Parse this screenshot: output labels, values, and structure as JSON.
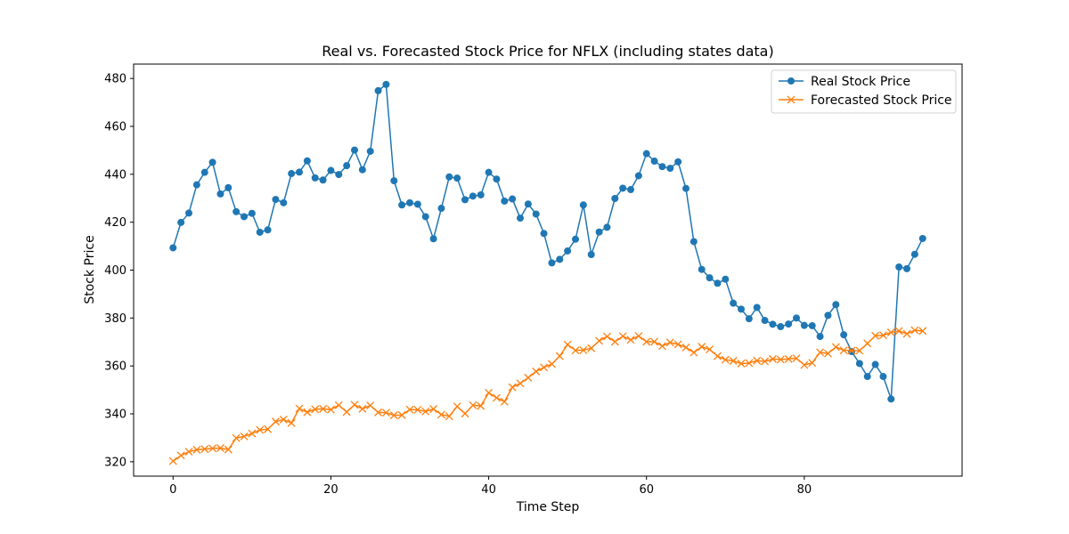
{
  "chart_data": {
    "type": "line",
    "title": "Real vs. Forecasted Stock Price for NFLX (including states data)",
    "xlabel": "Time Step",
    "ylabel": "Stock Price",
    "xlim": [
      -5,
      100
    ],
    "ylim": [
      314,
      486
    ],
    "xticks": [
      0,
      20,
      40,
      60,
      80
    ],
    "yticks": [
      320,
      340,
      360,
      380,
      400,
      420,
      440,
      460,
      480
    ],
    "grid": false,
    "legend_position": "top-right",
    "series": [
      {
        "name": "Real Stock Price",
        "color": "#1f77b4",
        "marker": "circle",
        "values": [
          409.3,
          419.9,
          423.8,
          435.6,
          440.8,
          445.0,
          431.8,
          434.4,
          424.4,
          422.3,
          423.7,
          415.8,
          416.8,
          429.5,
          428.1,
          440.3,
          440.9,
          445.6,
          438.5,
          437.6,
          441.6,
          439.9,
          443.6,
          450.1,
          441.9,
          449.6,
          474.9,
          477.5,
          437.3,
          427.2,
          428.1,
          427.5,
          422.3,
          413.1,
          425.8,
          438.9,
          438.4,
          429.4,
          430.9,
          431.4,
          440.8,
          438.0,
          428.8,
          429.7,
          421.7,
          427.6,
          423.4,
          415.3,
          403.0,
          404.5,
          408.0,
          412.9,
          427.2,
          406.5,
          415.9,
          417.9,
          429.9,
          434.2,
          433.6,
          439.4,
          448.6,
          445.5,
          443.2,
          442.5,
          445.2,
          434.1,
          411.9,
          400.3,
          396.8,
          394.5,
          396.2,
          386.2,
          383.7,
          379.7,
          384.4,
          379.0,
          377.4,
          376.4,
          377.5,
          380.0,
          376.9,
          376.8,
          372.3,
          381.1,
          385.6,
          373.0,
          366.0,
          361.0,
          355.6,
          360.6,
          355.6,
          346.2,
          401.3,
          400.6,
          406.6,
          413.2
        ]
      },
      {
        "name": "Forecasted Stock Price",
        "color": "#ff7f0e",
        "marker": "x",
        "values": [
          320.3,
          322.6,
          324.2,
          325.0,
          325.3,
          325.6,
          325.7,
          325.1,
          329.9,
          330.6,
          331.8,
          333.3,
          333.6,
          336.8,
          337.6,
          336.2,
          342.2,
          340.7,
          341.9,
          342.1,
          341.8,
          343.6,
          340.8,
          343.8,
          342.1,
          343.5,
          340.6,
          340.5,
          339.4,
          339.5,
          341.8,
          341.7,
          341.0,
          342.0,
          339.7,
          339.0,
          343.1,
          340.1,
          343.6,
          343.3,
          348.8,
          346.7,
          345.1,
          351.1,
          352.7,
          355.1,
          357.7,
          359.4,
          360.8,
          364.1,
          368.9,
          366.5,
          366.6,
          367.4,
          370.5,
          372.3,
          370.1,
          372.4,
          370.9,
          372.5,
          370.1,
          370.1,
          368.3,
          369.8,
          369.0,
          367.7,
          365.6,
          368.0,
          366.9,
          364.1,
          362.6,
          362.1,
          361.0,
          361.2,
          362.2,
          361.9,
          362.9,
          362.7,
          362.9,
          363.2,
          360.4,
          361.3,
          365.7,
          365.2,
          367.9,
          366.5,
          366.4,
          366.4,
          369.4,
          372.6,
          372.8,
          374.0,
          374.6,
          373.4,
          374.9,
          374.6
        ]
      }
    ]
  }
}
